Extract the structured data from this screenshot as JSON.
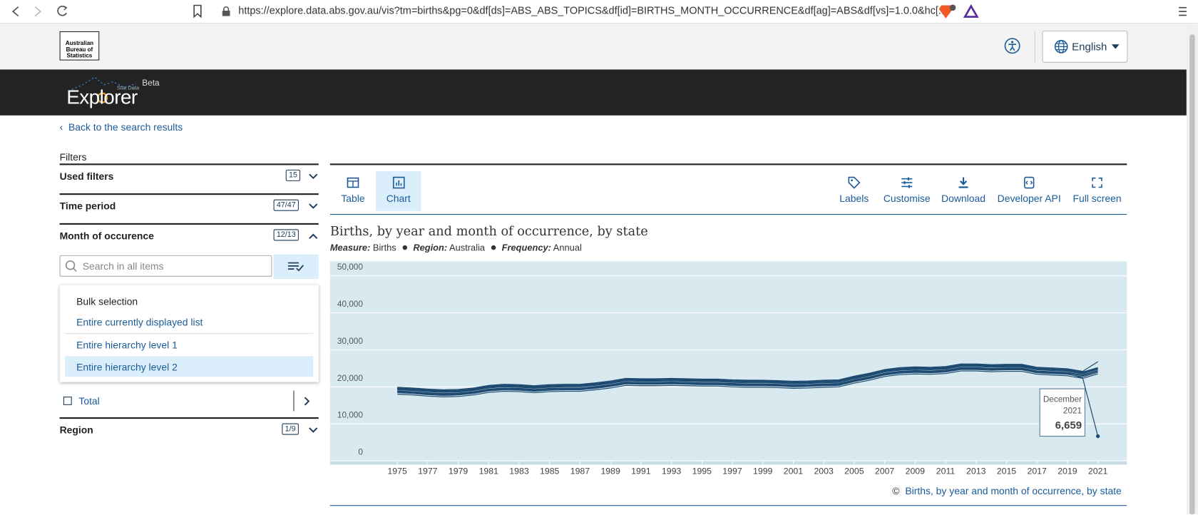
{
  "browser": {
    "url": "https://explore.data.abs.gov.au/vis?tm=births&pg=0&df[ds]=ABS_ABS_TOPICS&df[id]=BIRTHS_MONTH_OCCURRENCE&df[ag]=ABS&df[vs]=1.0.0&hc[..."
  },
  "header": {
    "logo": [
      "Australian",
      "Bureau of",
      "Statistics"
    ],
    "language": "English"
  },
  "banner": {
    "name": "Explorer",
    "tag": "Stat Data",
    "badge": "Beta"
  },
  "nav": {
    "back": "Back to the search results"
  },
  "filters": {
    "title": "Filters",
    "items": [
      {
        "label": "Used filters",
        "count": "15"
      },
      {
        "label": "Time period",
        "count": "47/47"
      },
      {
        "label": "Month of occurence",
        "count": "12/13"
      }
    ],
    "search_placeholder": "Search in all items",
    "bulk": {
      "title": "Bulk selection",
      "options": [
        "Entire currently displayed list",
        "Entire hierarchy level 1",
        "Entire hierarchy level 2"
      ]
    },
    "tree_item": "Total",
    "region": {
      "label": "Region",
      "count": "1/9"
    }
  },
  "toolbar": {
    "left": [
      "Table",
      "Chart"
    ],
    "right": [
      "Labels",
      "Customise",
      "Download",
      "Developer API",
      "Full screen"
    ]
  },
  "footer": {
    "copyright": "©",
    "source": "Births, by year and month of occurrence, by state"
  },
  "chart_data": {
    "type": "line",
    "title": "Births, by year and month of occurrence, by state",
    "subtitle": [
      {
        "label": "Measure:",
        "value": "Births"
      },
      {
        "label": "Region:",
        "value": "Australia"
      },
      {
        "label": "Frequency:",
        "value": "Annual"
      }
    ],
    "x": [
      1975,
      1976,
      1977,
      1978,
      1979,
      1980,
      1981,
      1982,
      1983,
      1984,
      1985,
      1986,
      1987,
      1988,
      1989,
      1990,
      1991,
      1992,
      1993,
      1994,
      1995,
      1996,
      1997,
      1998,
      1999,
      2000,
      2001,
      2002,
      2003,
      2004,
      2005,
      2006,
      2007,
      2008,
      2009,
      2010,
      2011,
      2012,
      2013,
      2014,
      2015,
      2016,
      2017,
      2018,
      2019,
      2020,
      2021
    ],
    "xlim": [
      1975,
      2021
    ],
    "xticks": [
      1975,
      1977,
      1979,
      1981,
      1983,
      1985,
      1987,
      1989,
      1991,
      1993,
      1995,
      1997,
      1999,
      2001,
      2003,
      2005,
      2007,
      2009,
      2011,
      2013,
      2015,
      2017,
      2019,
      2021
    ],
    "ylim": [
      0,
      50000
    ],
    "yticks": [
      0,
      {
        "value": 10000,
        "label": "10,000"
      },
      {
        "value": 20000,
        "label": "20,000"
      },
      {
        "value": 30000,
        "label": "30,000"
      },
      {
        "value": 40000,
        "label": "40,000"
      },
      {
        "value": 50000,
        "label": "50,000"
      }
    ],
    "grid": true,
    "color": "#1d4a70",
    "series": [
      {
        "values": [
          18700,
          18500,
          18200,
          18000,
          18100,
          18500,
          19200,
          19500,
          19400,
          19100,
          19400,
          19500,
          19500,
          19900,
          20400,
          21100,
          21000,
          21000,
          21100,
          21000,
          20900,
          20900,
          20700,
          20600,
          20600,
          20500,
          20300,
          20400,
          20600,
          20700,
          21700,
          22500,
          23500,
          24000,
          24200,
          24100,
          24300,
          25000,
          25000,
          24800,
          24900,
          24900,
          24100,
          23900,
          23700,
          23000,
          24200
        ]
      },
      {
        "values": [
          18000,
          17800,
          17500,
          17300,
          17400,
          17800,
          18500,
          18800,
          18700,
          18400,
          18700,
          18800,
          18800,
          19200,
          19700,
          20400,
          20300,
          20300,
          20400,
          20300,
          20200,
          20200,
          20000,
          19900,
          19900,
          19800,
          19600,
          19700,
          19900,
          20000,
          21000,
          21800,
          22800,
          23300,
          23500,
          23400,
          23600,
          24300,
          24300,
          24100,
          24200,
          24200,
          23400,
          23200,
          23000,
          22300,
          23500
        ]
      },
      {
        "values": [
          19700,
          19500,
          19200,
          19000,
          19100,
          19500,
          20200,
          20500,
          20400,
          20100,
          20400,
          20500,
          20500,
          20900,
          21400,
          22100,
          22000,
          22000,
          22100,
          22000,
          21900,
          21900,
          21700,
          21600,
          21600,
          21500,
          21300,
          21400,
          21600,
          21700,
          22700,
          23500,
          24500,
          25000,
          25200,
          25100,
          25300,
          26000,
          26000,
          25800,
          25900,
          25900,
          25100,
          24900,
          24700,
          24000,
          25200
        ]
      },
      {
        "values": [
          18400,
          18200,
          17900,
          17700,
          17800,
          18200,
          18900,
          19200,
          19100,
          18800,
          19100,
          19200,
          19200,
          19600,
          20100,
          20800,
          20700,
          20700,
          20800,
          20700,
          20600,
          20600,
          20400,
          20300,
          20300,
          20200,
          20000,
          20100,
          20300,
          20400,
          21400,
          22200,
          23200,
          23700,
          23900,
          23800,
          24000,
          24700,
          24700,
          24500,
          24600,
          24600,
          23800,
          23600,
          23400,
          22700,
          23900
        ]
      },
      {
        "values": [
          19500,
          19300,
          19000,
          18800,
          18900,
          19300,
          20000,
          20300,
          20200,
          19900,
          20200,
          20300,
          20300,
          20700,
          21200,
          21900,
          21800,
          21800,
          21900,
          21800,
          21700,
          21700,
          21500,
          21400,
          21400,
          21300,
          21100,
          21200,
          21400,
          21500,
          22500,
          23300,
          24300,
          24800,
          25000,
          24900,
          25100,
          25800,
          25800,
          25600,
          25700,
          25700,
          24900,
          24700,
          24500,
          23800,
          25000
        ]
      },
      {
        "values": [
          18800,
          18600,
          18300,
          18100,
          18200,
          18600,
          19300,
          19600,
          19500,
          19200,
          19500,
          19600,
          19600,
          20000,
          20500,
          21200,
          21100,
          21100,
          21200,
          21100,
          21000,
          21000,
          20800,
          20700,
          20700,
          20600,
          20400,
          20500,
          20700,
          20800,
          21800,
          22600,
          23600,
          24100,
          24300,
          24200,
          24400,
          25100,
          25100,
          24900,
          25000,
          25000,
          24200,
          24000,
          23800,
          23100,
          24300
        ]
      },
      {
        "values": [
          19400,
          19200,
          18900,
          18700,
          18800,
          19200,
          19900,
          20200,
          20100,
          19800,
          20100,
          20200,
          20200,
          20600,
          21100,
          21800,
          21700,
          21700,
          21800,
          21700,
          21600,
          21600,
          21400,
          21300,
          21300,
          21200,
          21000,
          21100,
          21300,
          21400,
          22400,
          23200,
          24200,
          24700,
          24900,
          24800,
          25000,
          25700,
          25700,
          25500,
          25600,
          25600,
          24800,
          24600,
          24400,
          23700,
          24900
        ]
      },
      {
        "values": [
          19200,
          19000,
          18700,
          18500,
          18600,
          19000,
          19700,
          20000,
          19900,
          19600,
          19900,
          20000,
          20000,
          20400,
          20900,
          21600,
          21500,
          21500,
          21600,
          21500,
          21400,
          21400,
          21200,
          21100,
          21100,
          21000,
          20800,
          20900,
          21100,
          21200,
          22200,
          23000,
          24000,
          24500,
          24700,
          24600,
          24800,
          25500,
          25500,
          25300,
          25400,
          25400,
          24600,
          24400,
          24200,
          23500,
          24700
        ]
      },
      {
        "values": [
          19600,
          19400,
          19100,
          18900,
          19000,
          19400,
          20100,
          20400,
          20300,
          20000,
          20300,
          20400,
          20400,
          20800,
          21300,
          22000,
          21900,
          21900,
          22000,
          21900,
          21800,
          21800,
          21600,
          21500,
          21500,
          21400,
          21200,
          21300,
          21500,
          21600,
          22600,
          23400,
          24400,
          24900,
          25100,
          25000,
          25200,
          25900,
          25900,
          25700,
          25800,
          25800,
          25000,
          24800,
          24600,
          23900,
          25100
        ]
      },
      {
        "values": [
          19900,
          19700,
          19400,
          19200,
          19300,
          19700,
          20400,
          20700,
          20600,
          20300,
          20600,
          20700,
          20700,
          21100,
          21600,
          22300,
          22200,
          22200,
          22300,
          22200,
          22100,
          22100,
          21900,
          21800,
          21800,
          21700,
          21500,
          21600,
          21800,
          21900,
          22900,
          23700,
          24700,
          25200,
          25400,
          25300,
          25500,
          26200,
          26200,
          26000,
          26100,
          26100,
          25300,
          25100,
          24900,
          24200,
          26800
        ]
      },
      {
        "values": [
          18900,
          18700,
          18400,
          18200,
          18300,
          18700,
          19400,
          19700,
          19600,
          19300,
          19600,
          19700,
          19700,
          20100,
          20600,
          21300,
          21200,
          21200,
          21300,
          21200,
          21100,
          21100,
          20900,
          20800,
          20800,
          20700,
          20500,
          20600,
          20800,
          20900,
          21900,
          22700,
          23700,
          24200,
          24400,
          24300,
          24500,
          25200,
          25200,
          25000,
          25100,
          25100,
          24300,
          24100,
          23900,
          23200,
          24400
        ]
      },
      {
        "values": [
          18600,
          18400,
          18100,
          17900,
          18000,
          18400,
          19100,
          19400,
          19300,
          19000,
          19300,
          19400,
          19400,
          19800,
          20300,
          21000,
          20900,
          20900,
          21000,
          20900,
          20800,
          20800,
          20600,
          20500,
          20500,
          20400,
          20200,
          20300,
          20500,
          20600,
          21600,
          22400,
          23400,
          23900,
          24100,
          24000,
          24200,
          24900,
          24900,
          24700,
          24800,
          24800,
          24000,
          23800,
          23600,
          22400,
          6659
        ]
      }
    ],
    "tooltip": {
      "month": "December",
      "year": "2021",
      "value_label": "6,659"
    }
  }
}
